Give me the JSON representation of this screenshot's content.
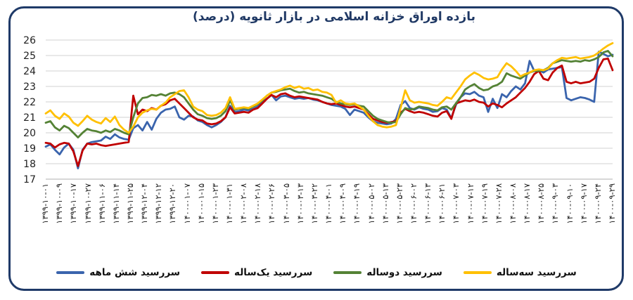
{
  "figure": {
    "border_color": "#1F3A68",
    "background": "#FFFFFF"
  },
  "chart_data": {
    "type": "line",
    "title": "بازده اوراق خزانه اسلامی در بازار ثانویه (درصد)",
    "title_color": "#1F3864",
    "xlabel": "",
    "ylabel": "",
    "ylim": [
      17,
      26
    ],
    "yticks": [
      17,
      18,
      19,
      20,
      21,
      22,
      23,
      24,
      25,
      26
    ],
    "grid": "horizontal",
    "grid_color": "#D9D9D9",
    "axis_line_color": "#BFBFBF",
    "axis_text_color": "#1F1F1F",
    "legend_position": "bottom",
    "x_labels": [
      "۱۳۹۹-۱۰-۰۱",
      "۱۳۹۹-۱۰-۰۹",
      "۱۳۹۹-۱۰-۱۷",
      "۱۳۹۹-۱۰-۲۷",
      "۱۳۹۹-۱۱-۰۶",
      "۱۳۹۹-۱۱-۱۴",
      "۱۳۹۹-۱۱-۲۵",
      "۱۳۹۹-۱۲-۰۴",
      "۱۳۹۹-۱۲-۱۲",
      "۱۳۹۹-۱۲-۲۰",
      "۱۴۰۰-۰۱-۰۷",
      "۱۴۰۰-۰۱-۱۵",
      "۱۴۰۰-۰۱-۲۳",
      "۱۴۰۰-۰۱-۳۱",
      "۱۴۰۰-۰۲-۰۸",
      "۱۴۰۰-۰۲-۱۸",
      "۱۴۰۰-۰۲-۲۶",
      "۱۴۰۰-۰۳-۰۵",
      "۱۴۰۰-۰۳-۱۳",
      "۱۴۰۰-۰۳-۲۲",
      "۱۴۰۰-۰۴-۰۱",
      "۱۴۰۰-۰۴-۰۹",
      "۱۴۰۰-۰۴-۱۹",
      "۱۴۰۰-۰۵-۰۲",
      "۱۴۰۰-۰۵-۱۳",
      "۱۴۰۰-۰۵-۲۳",
      "۱۴۰۰-۰۶-۰۲",
      "۱۴۰۰-۰۶-۱۳",
      "۱۴۰۰-۰۶-۲۱",
      "۱۴۰۰-۰۷-۰۳",
      "۱۴۰۰-۰۷-۱۲",
      "۱۴۰۰-۰۷-۱۹",
      "۱۴۰۰-۰۷-۲۸",
      "۱۴۰۰-۰۸-۰۸",
      "۱۴۰۰-۰۸-۱۷",
      "۱۴۰۰-۰۸-۲۵",
      "۱۴۰۰-۰۹-۰۳",
      "۱۴۰۰-۰۹-۱۰",
      "۱۴۰۰-۰۹-۱۷",
      "۱۴۰۰-۰۹-۲۴",
      "۱۴۰۰-۰۹-۲۹"
    ],
    "series": [
      {
        "key": "6month",
        "name": "سررسید شش ماهه",
        "color": "#3A64AD",
        "values": [
          19.1,
          19.25,
          18.9,
          18.6,
          19.05,
          19.3,
          18.9,
          17.7,
          18.9,
          19.3,
          19.4,
          19.45,
          19.5,
          19.75,
          19.6,
          19.9,
          19.7,
          19.6,
          19.55,
          20.3,
          20.5,
          20.15,
          20.7,
          20.2,
          20.9,
          21.3,
          21.5,
          21.55,
          21.7,
          21.0,
          20.85,
          21.1,
          21.05,
          20.8,
          20.7,
          20.5,
          20.35,
          20.5,
          20.7,
          21.0,
          21.75,
          21.35,
          21.4,
          21.5,
          21.45,
          21.55,
          21.7,
          21.95,
          22.2,
          22.45,
          22.1,
          22.35,
          22.4,
          22.3,
          22.2,
          22.25,
          22.2,
          22.25,
          22.15,
          22.1,
          22.0,
          21.9,
          21.8,
          21.75,
          21.7,
          21.55,
          21.15,
          21.5,
          21.4,
          21.3,
          21.0,
          20.75,
          20.65,
          20.6,
          20.55,
          20.6,
          20.9,
          21.8,
          22.05,
          21.6,
          21.5,
          21.65,
          21.55,
          21.5,
          21.35,
          21.4,
          21.6,
          21.5,
          20.95,
          21.8,
          22.3,
          22.55,
          22.5,
          22.65,
          22.4,
          22.3,
          21.35,
          22.2,
          21.6,
          22.5,
          22.3,
          22.7,
          23.0,
          22.8,
          23.2,
          24.65,
          24.0,
          24.05,
          23.9,
          24.1,
          24.15,
          24.2,
          24.25,
          22.25,
          22.1,
          22.2,
          22.3,
          22.25,
          22.15,
          22.0,
          25.25,
          25.1,
          24.95,
          25.05
        ]
      },
      {
        "key": "1year",
        "name": "سررسید یک‌ساله",
        "color": "#C00000",
        "values": [
          19.35,
          19.3,
          19.05,
          19.25,
          19.35,
          19.3,
          18.8,
          17.85,
          18.85,
          19.3,
          19.25,
          19.3,
          19.2,
          19.15,
          19.2,
          19.25,
          19.3,
          19.35,
          19.4,
          22.4,
          21.2,
          21.5,
          21.4,
          21.6,
          21.5,
          21.75,
          21.85,
          22.1,
          22.2,
          21.9,
          21.6,
          21.3,
          21.0,
          20.85,
          20.8,
          20.6,
          20.55,
          20.6,
          20.75,
          21.0,
          21.65,
          21.25,
          21.3,
          21.35,
          21.3,
          21.5,
          21.6,
          21.9,
          22.2,
          22.45,
          22.3,
          22.5,
          22.55,
          22.4,
          22.3,
          22.35,
          22.3,
          22.25,
          22.2,
          22.15,
          22.0,
          21.9,
          21.85,
          21.9,
          21.8,
          21.7,
          21.65,
          21.7,
          21.6,
          21.5,
          21.2,
          20.9,
          20.8,
          20.7,
          20.65,
          20.7,
          20.75,
          21.3,
          21.55,
          21.4,
          21.3,
          21.35,
          21.3,
          21.2,
          21.1,
          21.05,
          21.3,
          21.4,
          20.9,
          21.9,
          22.0,
          22.1,
          22.05,
          22.15,
          22.0,
          21.95,
          21.7,
          21.9,
          21.8,
          21.65,
          21.9,
          22.1,
          22.3,
          22.6,
          22.9,
          23.3,
          23.8,
          24.0,
          23.5,
          23.4,
          23.9,
          24.2,
          24.35,
          23.3,
          23.2,
          23.3,
          23.2,
          23.25,
          23.3,
          23.5,
          24.2,
          24.75,
          24.8,
          24.05
        ]
      },
      {
        "key": "2year",
        "name": "سررسید دوساله",
        "color": "#548235",
        "values": [
          20.65,
          20.75,
          20.35,
          20.15,
          20.45,
          20.3,
          20.0,
          19.7,
          20.0,
          20.25,
          20.15,
          20.1,
          20.0,
          20.15,
          20.05,
          20.25,
          20.15,
          20.0,
          19.9,
          21.0,
          21.9,
          22.25,
          22.3,
          22.45,
          22.4,
          22.5,
          22.4,
          22.55,
          22.6,
          22.5,
          22.3,
          21.9,
          21.5,
          21.2,
          21.1,
          20.95,
          20.9,
          20.95,
          21.1,
          21.4,
          22.1,
          21.5,
          21.55,
          21.6,
          21.55,
          21.7,
          21.85,
          22.1,
          22.4,
          22.6,
          22.65,
          22.75,
          22.8,
          22.85,
          22.7,
          22.6,
          22.65,
          22.55,
          22.5,
          22.45,
          22.4,
          22.3,
          22.2,
          22.0,
          21.9,
          21.85,
          21.8,
          21.85,
          21.75,
          21.7,
          21.4,
          21.1,
          20.9,
          20.8,
          20.7,
          20.65,
          20.7,
          21.2,
          21.6,
          21.5,
          21.55,
          21.7,
          21.65,
          21.6,
          21.5,
          21.45,
          21.65,
          21.7,
          21.5,
          21.9,
          22.3,
          22.8,
          23.0,
          23.15,
          22.9,
          22.75,
          22.8,
          23.0,
          23.1,
          23.3,
          23.85,
          23.7,
          23.6,
          23.5,
          23.7,
          23.9,
          24.0,
          24.0,
          24.05,
          24.2,
          24.5,
          24.6,
          24.7,
          24.65,
          24.6,
          24.65,
          24.6,
          24.7,
          24.65,
          24.75,
          24.9,
          25.2,
          25.3,
          24.95
        ]
      },
      {
        "key": "3year",
        "name": "سررسید سه‌ساله",
        "color": "#FFC000",
        "values": [
          21.25,
          21.45,
          21.1,
          20.9,
          21.25,
          21.05,
          20.65,
          20.45,
          20.75,
          21.1,
          20.85,
          20.7,
          20.6,
          20.95,
          20.7,
          21.05,
          20.5,
          20.2,
          20.0,
          20.4,
          21.0,
          21.3,
          21.45,
          21.55,
          21.5,
          21.75,
          21.95,
          22.3,
          22.5,
          22.7,
          22.75,
          22.3,
          21.7,
          21.5,
          21.4,
          21.15,
          21.1,
          21.15,
          21.3,
          21.6,
          22.3,
          21.55,
          21.6,
          21.65,
          21.6,
          21.75,
          21.9,
          22.15,
          22.4,
          22.6,
          22.7,
          22.8,
          22.95,
          23.05,
          22.9,
          23.0,
          22.85,
          22.9,
          22.75,
          22.8,
          22.65,
          22.6,
          22.45,
          21.95,
          22.1,
          21.9,
          21.85,
          21.9,
          21.7,
          21.5,
          21.1,
          20.75,
          20.5,
          20.4,
          20.35,
          20.4,
          20.5,
          21.6,
          22.75,
          22.1,
          21.95,
          22.0,
          21.95,
          21.9,
          21.8,
          21.75,
          22.0,
          22.3,
          22.2,
          22.6,
          23.0,
          23.45,
          23.7,
          23.9,
          23.75,
          23.55,
          23.45,
          23.5,
          23.6,
          24.1,
          24.5,
          24.3,
          24.0,
          23.65,
          23.8,
          23.9,
          24.05,
          24.1,
          24.05,
          24.15,
          24.5,
          24.7,
          24.85,
          24.8,
          24.85,
          24.9,
          24.8,
          24.85,
          24.9,
          25.0,
          25.2,
          25.45,
          25.65,
          25.8
        ]
      }
    ]
  }
}
